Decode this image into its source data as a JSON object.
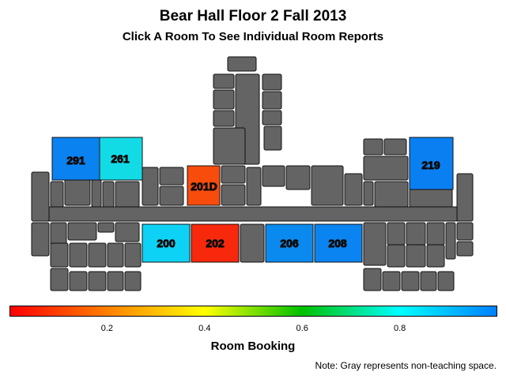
{
  "title": "Bear Hall Floor 2 Fall 2013",
  "subtitle": "Click A Room To See Individual Room Reports",
  "rooms": [
    {
      "label": "291",
      "booking": 0.98,
      "color": "#0a82f0"
    },
    {
      "label": "261",
      "booking": 0.86,
      "color": "#13dbe6"
    },
    {
      "label": "219",
      "booking": 0.98,
      "color": "#0a7ff2"
    },
    {
      "label": "201D",
      "booking": 0.08,
      "color": "#f84c0c"
    },
    {
      "label": "200",
      "booking": 0.88,
      "color": "#0ed2f5"
    },
    {
      "label": "202",
      "booking": 0.02,
      "color": "#f8280c"
    },
    {
      "label": "206",
      "booking": 0.96,
      "color": "#0a8aee"
    },
    {
      "label": "208",
      "booking": 0.97,
      "color": "#0a84f0"
    }
  ],
  "legend": {
    "title": "Room Booking",
    "ticks": [
      "0.2",
      "0.4",
      "0.6",
      "0.8"
    ],
    "tick_values": [
      0.2,
      0.4,
      0.6,
      0.8
    ],
    "range": [
      0,
      1
    ],
    "gradient_colors": [
      "#ff0000",
      "#ff8000",
      "#ffff00",
      "#00c000",
      "#00ffff",
      "#0080ff"
    ]
  },
  "note": "Note: Gray represents non-teaching space.",
  "colors": {
    "gray": "#646464"
  }
}
